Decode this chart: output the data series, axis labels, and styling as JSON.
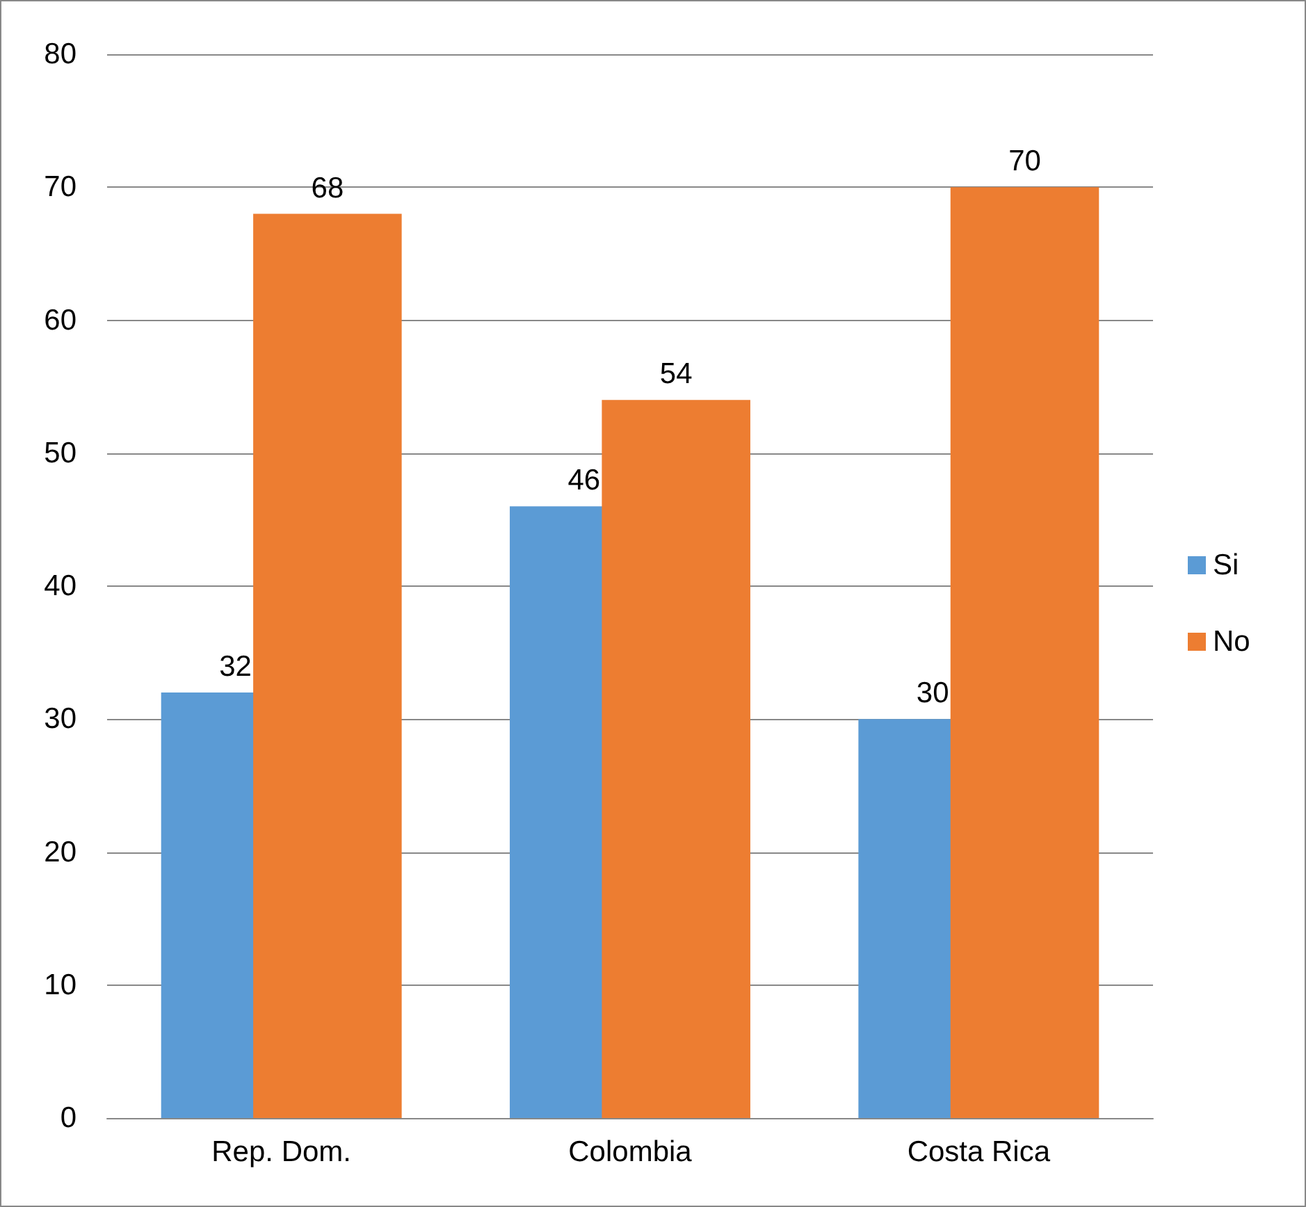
{
  "chart_data": {
    "type": "bar",
    "categories": [
      "Rep. Dom.",
      "Colombia",
      "Costa Rica"
    ],
    "series": [
      {
        "name": "Si",
        "color": "#5b9bd5",
        "values": [
          32,
          46,
          30
        ]
      },
      {
        "name": "No",
        "color": "#ed7d31",
        "values": [
          68,
          54,
          70
        ]
      }
    ],
    "ylim": [
      0,
      80
    ],
    "yticks": [
      0,
      10,
      20,
      30,
      40,
      50,
      60,
      70,
      80
    ],
    "grid": "y",
    "legend": "right",
    "data_labels": true
  }
}
